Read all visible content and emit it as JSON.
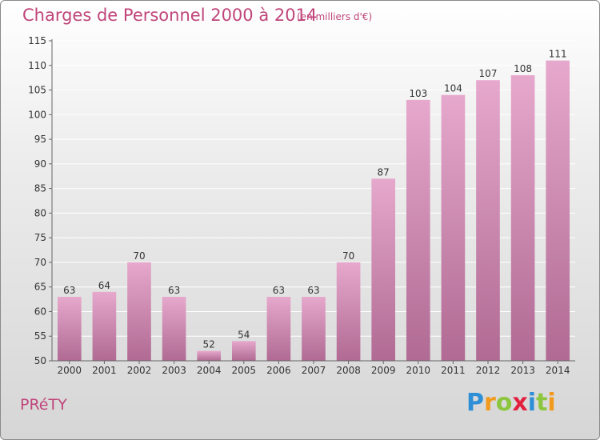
{
  "header": {
    "title": "Charges de Personnel 2000 à 2014",
    "subtitle": "(en milliers d'€)"
  },
  "commune": "PRéTY",
  "logo": {
    "letters": [
      "P",
      "r",
      "o",
      "x",
      "i",
      "t",
      "i"
    ],
    "colors": [
      "#2e8fd6",
      "#f29a1d",
      "#8cc63f",
      "#e2203f",
      "#2e8fd6",
      "#8cc63f",
      "#f29a1d"
    ]
  },
  "colors": {
    "bar_top": "#e6a8cc",
    "bar_bottom": "#b06a93",
    "text": "#c0457a",
    "grid": "#ffffff"
  },
  "chart_data": {
    "type": "bar",
    "categories": [
      "2000",
      "2001",
      "2002",
      "2003",
      "2004",
      "2005",
      "2006",
      "2007",
      "2008",
      "2009",
      "2010",
      "2011",
      "2012",
      "2013",
      "2014"
    ],
    "values": [
      63,
      64,
      70,
      63,
      52,
      54,
      63,
      63,
      70,
      87,
      103,
      104,
      107,
      108,
      111
    ],
    "ylim": [
      50,
      115
    ],
    "yticks": [
      50,
      55,
      60,
      65,
      70,
      75,
      80,
      85,
      90,
      95,
      100,
      105,
      110,
      115
    ],
    "grid": true
  }
}
